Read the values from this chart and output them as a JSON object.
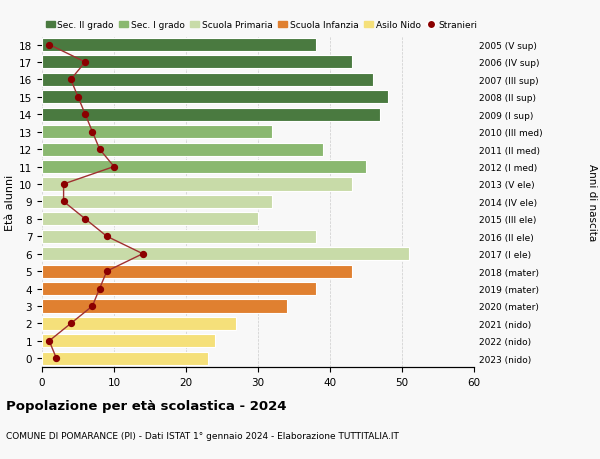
{
  "ages": [
    0,
    1,
    2,
    3,
    4,
    5,
    6,
    7,
    8,
    9,
    10,
    11,
    12,
    13,
    14,
    15,
    16,
    17,
    18
  ],
  "bar_values": [
    23,
    24,
    27,
    34,
    38,
    43,
    51,
    38,
    30,
    32,
    43,
    45,
    39,
    32,
    47,
    48,
    46,
    43,
    38
  ],
  "bar_colors": [
    "#f5e07a",
    "#f5e07a",
    "#f5e07a",
    "#e08030",
    "#e08030",
    "#e08030",
    "#c8dba8",
    "#c8dba8",
    "#c8dba8",
    "#c8dba8",
    "#c8dba8",
    "#8ab870",
    "#8ab870",
    "#8ab870",
    "#4a7a40",
    "#4a7a40",
    "#4a7a40",
    "#4a7a40",
    "#4a7a40"
  ],
  "stranieri_values": [
    2,
    1,
    4,
    7,
    8,
    9,
    14,
    9,
    6,
    3,
    3,
    10,
    8,
    7,
    6,
    5,
    4,
    6,
    1
  ],
  "right_labels": [
    "2023 (nido)",
    "2022 (nido)",
    "2021 (nido)",
    "2020 (mater)",
    "2019 (mater)",
    "2018 (mater)",
    "2017 (I ele)",
    "2016 (II ele)",
    "2015 (III ele)",
    "2014 (IV ele)",
    "2013 (V ele)",
    "2012 (I med)",
    "2011 (II med)",
    "2010 (III med)",
    "2009 (I sup)",
    "2008 (II sup)",
    "2007 (III sup)",
    "2006 (IV sup)",
    "2005 (V sup)"
  ],
  "legend_labels": [
    "Sec. II grado",
    "Sec. I grado",
    "Scuola Primaria",
    "Scuola Infanzia",
    "Asilo Nido",
    "Stranieri"
  ],
  "legend_colors": [
    "#4a7a40",
    "#8ab870",
    "#c8dba8",
    "#e08030",
    "#f5e07a",
    "#8b0000"
  ],
  "ylabel_left": "Età alunni",
  "ylabel_right": "Anni di nascita",
  "title": "Popolazione per età scolastica - 2024",
  "subtitle": "COMUNE DI POMARANCE (PI) - Dati ISTAT 1° gennaio 2024 - Elaborazione TUTTITALIA.IT",
  "xlim": [
    0,
    60
  ],
  "xticks": [
    0,
    10,
    20,
    30,
    40,
    50,
    60
  ],
  "bg_color": "#f8f8f8",
  "bar_height": 0.75,
  "stranieri_color": "#8b0000",
  "stranieri_line_color": "#a03030"
}
